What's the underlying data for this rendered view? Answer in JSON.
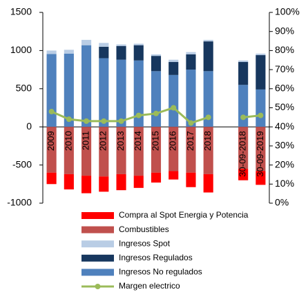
{
  "chart_data": {
    "type": "bar",
    "stacked": true,
    "categories": [
      "2009",
      "2010",
      "2011",
      "2012",
      "2013",
      "2014",
      "2015",
      "2016",
      "2017",
      "2018",
      null,
      "30-09-2018",
      "30-09-2019"
    ],
    "series": [
      {
        "name": "Compra al Spot Energia y Potencia",
        "color": "#ff0000",
        "values": [
          -150,
          -200,
          -230,
          -200,
          -210,
          -160,
          -130,
          -110,
          -190,
          -240,
          null,
          -150,
          -180
        ]
      },
      {
        "name": "Combustibles",
        "color": "#c0504d",
        "values": [
          -600,
          -620,
          -640,
          -650,
          -620,
          -640,
          -600,
          -580,
          -600,
          -620,
          null,
          -550,
          -580
        ]
      },
      {
        "name": "Ingresos Spot",
        "color": "#b9cde5",
        "values": [
          45,
          50,
          70,
          50,
          20,
          20,
          20,
          30,
          30,
          20,
          null,
          20,
          20
        ]
      },
      {
        "name": "Ingresos Regulados",
        "color": "#17375e",
        "values": [
          0,
          0,
          0,
          150,
          180,
          200,
          200,
          170,
          200,
          390,
          null,
          300,
          450
        ]
      },
      {
        "name": "Ingresos No regulados",
        "color": "#4f81bd",
        "values": [
          955,
          960,
          1070,
          900,
          880,
          870,
          730,
          680,
          750,
          730,
          null,
          550,
          490
        ]
      },
      {
        "name": "Margen electrico",
        "color": "#9bbb59",
        "type": "line",
        "axis": "y2",
        "values": [
          48,
          44,
          43,
          43,
          43,
          46,
          47,
          50,
          42,
          45,
          null,
          45,
          46
        ]
      }
    ],
    "ylim": [
      -1000,
      1500
    ],
    "yticks": [
      -1000,
      -500,
      0,
      500,
      1000,
      1500
    ],
    "y2lim": [
      0,
      100
    ],
    "y2ticks": [
      {
        "value": 0,
        "label": "0%"
      },
      {
        "value": 10,
        "label": "10%"
      },
      {
        "value": 20,
        "label": "20%"
      },
      {
        "value": 30,
        "label": "30%"
      },
      {
        "value": 40,
        "label": "40%"
      },
      {
        "value": 50,
        "label": "50%"
      },
      {
        "value": 60,
        "label": "60%"
      },
      {
        "value": 70,
        "label": "70%"
      },
      {
        "value": 80,
        "label": "80%"
      },
      {
        "value": 90,
        "label": "90%"
      },
      {
        "value": 100,
        "label": "100%"
      }
    ],
    "legend": "bottom"
  }
}
